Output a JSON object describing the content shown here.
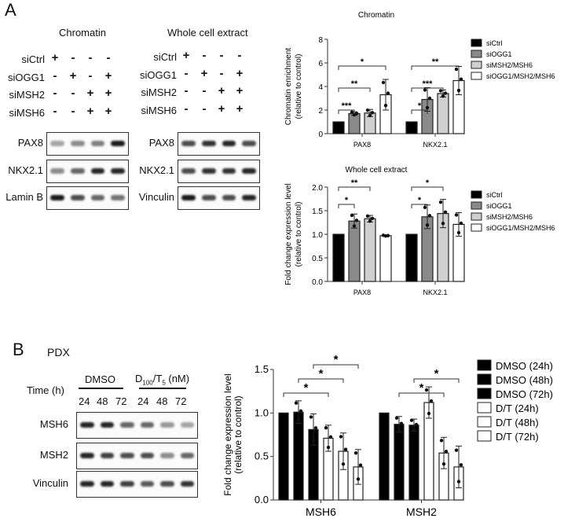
{
  "panelA": {
    "letter": "A",
    "chromatin_title": "Chromatin",
    "wce_title": "Whole cell extract",
    "conditions": [
      {
        "label": "siCtrl",
        "signs": [
          "+",
          "-",
          "-",
          "-"
        ]
      },
      {
        "label": "siOGG1",
        "signs": [
          "-",
          "+",
          "-",
          "+"
        ]
      },
      {
        "label": "siMSH2",
        "signs": [
          "-",
          "-",
          "+",
          "+"
        ]
      },
      {
        "label": "siMSH6",
        "signs": [
          "-",
          "-",
          "+",
          "+"
        ]
      }
    ],
    "chromatin_blots": [
      {
        "label": "PAX8",
        "intensity": [
          0.35,
          0.45,
          0.5,
          0.9
        ]
      },
      {
        "label": "NKX2.1",
        "intensity": [
          0.45,
          0.6,
          0.85,
          0.85
        ]
      },
      {
        "label": "Lamin B",
        "intensity": [
          0.9,
          0.7,
          0.6,
          0.55
        ]
      }
    ],
    "wce_blots": [
      {
        "label": "PAX8",
        "intensity": [
          0.7,
          0.8,
          0.85,
          0.7
        ]
      },
      {
        "label": "NKX2.1",
        "intensity": [
          0.7,
          0.8,
          0.8,
          0.85
        ]
      },
      {
        "label": "Vinculin",
        "intensity": [
          0.9,
          0.7,
          0.7,
          0.85
        ]
      }
    ]
  },
  "panelB": {
    "letter": "B",
    "model": "PDX",
    "time_label": "Time (h)",
    "group1": "DMSO",
    "group2_main": "D",
    "group2_sub1": "100",
    "group2_mid": "/T",
    "group2_sub2": "5",
    "group2_unit": " (nM)",
    "times": [
      "24",
      "48",
      "72",
      "24",
      "48",
      "72"
    ],
    "blots": [
      {
        "label": "MSH6",
        "intensity": [
          0.85,
          0.85,
          0.6,
          0.6,
          0.4,
          0.35
        ]
      },
      {
        "label": "MSH2",
        "intensity": [
          0.85,
          0.75,
          0.7,
          0.7,
          0.45,
          0.6
        ]
      },
      {
        "label": "Vinculin",
        "intensity": [
          0.85,
          0.85,
          0.75,
          0.65,
          0.7,
          0.8
        ]
      }
    ]
  },
  "chart_data": [
    {
      "type": "bar",
      "title": "Chromatin",
      "xlabel": "",
      "ylabel": "Chromatin enrichment (relative to control)",
      "categories": [
        "PAX8",
        "NKX2.1"
      ],
      "ylim": [
        0,
        8
      ],
      "yticks": [
        0,
        2,
        4,
        6,
        8
      ],
      "series": [
        {
          "name": "siCtrl",
          "color": "#000000",
          "values": [
            1.0,
            1.0
          ],
          "err": [
            0,
            0
          ]
        },
        {
          "name": "siOGG1",
          "color": "#8a8a8a",
          "values": [
            1.7,
            2.9
          ],
          "err": [
            0.15,
            1.0
          ]
        },
        {
          "name": "siMSH2/MSH6",
          "color": "#cfcfcf",
          "values": [
            1.75,
            3.4
          ],
          "err": [
            0.3,
            0.3
          ]
        },
        {
          "name": "siOGG1/MSH2/MSH6",
          "color": "#ffffff",
          "values": [
            3.3,
            4.5
          ],
          "err": [
            1.3,
            1.2
          ]
        }
      ],
      "significance": [
        {
          "category": "PAX8",
          "from": 0,
          "to": 1,
          "label": "***"
        },
        {
          "category": "PAX8",
          "from": 0,
          "to": 2,
          "label": "**"
        },
        {
          "category": "PAX8",
          "from": 0,
          "to": 3,
          "label": "*"
        },
        {
          "category": "NKX2.1",
          "from": 0,
          "to": 1,
          "label": "*"
        },
        {
          "category": "NKX2.1",
          "from": 0,
          "to": 2,
          "label": "***"
        },
        {
          "category": "NKX2.1",
          "from": 0,
          "to": 3,
          "label": "**"
        }
      ],
      "legend_position": "right"
    },
    {
      "type": "bar",
      "title": "Whole cell extract",
      "xlabel": "",
      "ylabel": "Fold change expression level (relative to control)",
      "categories": [
        "PAX8",
        "NKX2.1"
      ],
      "ylim": [
        0,
        2.0
      ],
      "yticks": [
        "0.0",
        "0.5",
        "1.0",
        "1.5",
        "2.0"
      ],
      "series": [
        {
          "name": "siCtrl",
          "color": "#000000",
          "values": [
            1.0,
            1.0
          ],
          "err": [
            0,
            0
          ]
        },
        {
          "name": "siOGG1",
          "color": "#8a8a8a",
          "values": [
            1.28,
            1.37
          ],
          "err": [
            0.15,
            0.25
          ]
        },
        {
          "name": "siMSH2/MSH6",
          "color": "#cfcfcf",
          "values": [
            1.33,
            1.44
          ],
          "err": [
            0.07,
            0.3
          ]
        },
        {
          "name": "siOGG1/MSH2/MSH6",
          "color": "#ffffff",
          "values": [
            0.97,
            1.21
          ],
          "err": [
            0.01,
            0.25
          ]
        }
      ],
      "significance": [
        {
          "category": "PAX8",
          "from": 0,
          "to": 1,
          "label": "*"
        },
        {
          "category": "PAX8",
          "from": 0,
          "to": 2,
          "label": "**"
        },
        {
          "category": "NKX2.1",
          "from": 0,
          "to": 1,
          "label": "*"
        },
        {
          "category": "NKX2.1",
          "from": 0,
          "to": 2,
          "label": "*"
        }
      ],
      "legend_position": "right"
    },
    {
      "type": "bar",
      "title": "",
      "xlabel": "",
      "ylabel": "Fold change expression level (relative to control)",
      "categories": [
        "MSH6",
        "MSH2"
      ],
      "ylim": [
        0,
        1.5
      ],
      "yticks": [
        "0.0",
        "0.5",
        "1.0",
        "1.5"
      ],
      "series": [
        {
          "name": "DMSO (24h)",
          "color": "#000000",
          "values": [
            1.0,
            1.0
          ],
          "err": [
            0,
            0
          ]
        },
        {
          "name": "DMSO (48h)",
          "color": "#000000",
          "values": [
            1.01,
            0.87
          ],
          "err": [
            0.13,
            0.09
          ]
        },
        {
          "name": "DMSO (72h)",
          "color": "#000000",
          "values": [
            0.81,
            0.86
          ],
          "err": [
            0.18,
            0.07
          ]
        },
        {
          "name": "D/T (24h)",
          "color": "#ffffff",
          "values": [
            0.71,
            1.12
          ],
          "err": [
            0.15,
            0.18
          ]
        },
        {
          "name": "D/T (48h)",
          "color": "#ffffff",
          "values": [
            0.56,
            0.54
          ],
          "err": [
            0.21,
            0.18
          ]
        },
        {
          "name": "D/T (72h)",
          "color": "#ffffff",
          "values": [
            0.38,
            0.38
          ],
          "err": [
            0.2,
            0.24
          ]
        }
      ],
      "significance": [
        {
          "category": "MSH6",
          "from": 0,
          "to": 3,
          "label": "*"
        },
        {
          "category": "MSH6",
          "from": 1,
          "to": 4,
          "label": "*"
        },
        {
          "category": "MSH6",
          "from": 2,
          "to": 5,
          "label": "*"
        },
        {
          "category": "MSH2",
          "from": 1,
          "to": 4,
          "label": "*"
        },
        {
          "category": "MSH2",
          "from": 2,
          "to": 5,
          "label": "*"
        }
      ],
      "legend_position": "right"
    }
  ]
}
